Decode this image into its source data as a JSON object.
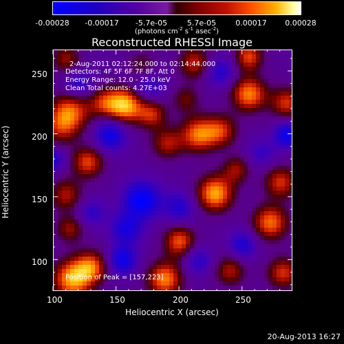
{
  "colorbar": {
    "ticks": [
      "-0.00028",
      "-0.00017",
      "-5.7e-05",
      "5.7e-05",
      "0.00017",
      "0.00028"
    ],
    "unit_prefix": "(photons cm",
    "unit_exp1": "-2",
    "unit_mid1": " s",
    "unit_exp2": "-1",
    "unit_mid2": " asec",
    "unit_exp3": "-2",
    "unit_suffix": ")",
    "colors": [
      "#0000ff",
      "#5000a0",
      "#300000",
      "#c01000",
      "#ffb000",
      "#ffffff"
    ]
  },
  "info": {
    "time_range": "2-Aug-2011 02:12:24.000 to 02:14:44.000",
    "detectors": "Detectors: 4F 5F 6F 7F 8F, Att 0",
    "energy": "Energy Range: 12.0 - 25.0 keV",
    "clean": "Clean    Total counts: 4.27E+03",
    "peak": "Position of Peak = [157,223]"
  },
  "timestamp": "20-Aug-2013 16:27",
  "chart_data": {
    "type": "heatmap",
    "title": "Reconstructed RHESSI Image",
    "xlabel": "Heliocentric X (arcsec)",
    "ylabel": "Heliocentric Y (arcsec)",
    "xlim": [
      100,
      290
    ],
    "ylim": [
      75,
      267
    ],
    "x_ticks": [
      "100",
      "150",
      "200",
      "250"
    ],
    "y_ticks": [
      "100",
      "150",
      "200",
      "250"
    ],
    "x_tick_values": [
      100,
      150,
      200,
      250
    ],
    "y_tick_values": [
      100,
      150,
      200,
      250
    ],
    "value_range": [
      -0.00028,
      0.00028
    ],
    "peak": [
      157,
      223
    ],
    "blobs": [
      {
        "x": 157,
        "y": 223,
        "v": 1.0,
        "s": 10
      },
      {
        "x": 140,
        "y": 225,
        "v": 0.55,
        "s": 9
      },
      {
        "x": 178,
        "y": 216,
        "v": 0.6,
        "s": 8
      },
      {
        "x": 113,
        "y": 218,
        "v": 0.75,
        "s": 11
      },
      {
        "x": 105,
        "y": 205,
        "v": 0.45,
        "s": 10
      },
      {
        "x": 255,
        "y": 232,
        "v": 0.85,
        "s": 10
      },
      {
        "x": 285,
        "y": 225,
        "v": 0.65,
        "s": 9
      },
      {
        "x": 255,
        "y": 262,
        "v": 0.7,
        "s": 8
      },
      {
        "x": 212,
        "y": 257,
        "v": 0.6,
        "s": 9
      },
      {
        "x": 205,
        "y": 228,
        "v": 0.4,
        "s": 8
      },
      {
        "x": 215,
        "y": 200,
        "v": 0.8,
        "s": 10
      },
      {
        "x": 233,
        "y": 203,
        "v": 0.6,
        "s": 9
      },
      {
        "x": 190,
        "y": 193,
        "v": 0.55,
        "s": 9
      },
      {
        "x": 127,
        "y": 178,
        "v": 0.7,
        "s": 9
      },
      {
        "x": 245,
        "y": 172,
        "v": 0.5,
        "s": 8
      },
      {
        "x": 228,
        "y": 153,
        "v": 0.95,
        "s": 10
      },
      {
        "x": 280,
        "y": 162,
        "v": 0.65,
        "s": 9
      },
      {
        "x": 272,
        "y": 130,
        "v": 0.8,
        "s": 10
      },
      {
        "x": 110,
        "y": 152,
        "v": 0.55,
        "s": 9
      },
      {
        "x": 113,
        "y": 125,
        "v": 0.5,
        "s": 8
      },
      {
        "x": 115,
        "y": 85,
        "v": 0.95,
        "s": 11
      },
      {
        "x": 130,
        "y": 95,
        "v": 0.7,
        "s": 9
      },
      {
        "x": 200,
        "y": 115,
        "v": 0.75,
        "s": 9
      },
      {
        "x": 188,
        "y": 85,
        "v": 0.85,
        "s": 10
      },
      {
        "x": 240,
        "y": 92,
        "v": 0.55,
        "s": 9
      },
      {
        "x": 282,
        "y": 90,
        "v": 0.65,
        "s": 9
      },
      {
        "x": 110,
        "y": 260,
        "v": 0.5,
        "s": 8
      },
      {
        "x": 170,
        "y": 255,
        "v": 0.35,
        "s": 8
      },
      {
        "x": 170,
        "y": 148,
        "v": -0.85,
        "s": 10
      },
      {
        "x": 158,
        "y": 125,
        "v": -0.6,
        "s": 9
      },
      {
        "x": 155,
        "y": 100,
        "v": -0.7,
        "s": 8
      },
      {
        "x": 200,
        "y": 142,
        "v": -0.5,
        "s": 9
      },
      {
        "x": 145,
        "y": 200,
        "v": -0.7,
        "s": 9
      },
      {
        "x": 175,
        "y": 238,
        "v": -0.4,
        "s": 9
      },
      {
        "x": 285,
        "y": 200,
        "v": -0.75,
        "s": 7
      },
      {
        "x": 250,
        "y": 112,
        "v": -0.55,
        "s": 8
      },
      {
        "x": 232,
        "y": 250,
        "v": -0.5,
        "s": 8
      },
      {
        "x": 120,
        "y": 240,
        "v": -0.45,
        "s": 8
      },
      {
        "x": 265,
        "y": 185,
        "v": -0.35,
        "s": 8
      },
      {
        "x": 130,
        "y": 138,
        "v": -0.4,
        "s": 8
      },
      {
        "x": 215,
        "y": 100,
        "v": -0.45,
        "s": 8
      },
      {
        "x": 100,
        "y": 180,
        "v": -0.5,
        "s": 7
      }
    ]
  }
}
